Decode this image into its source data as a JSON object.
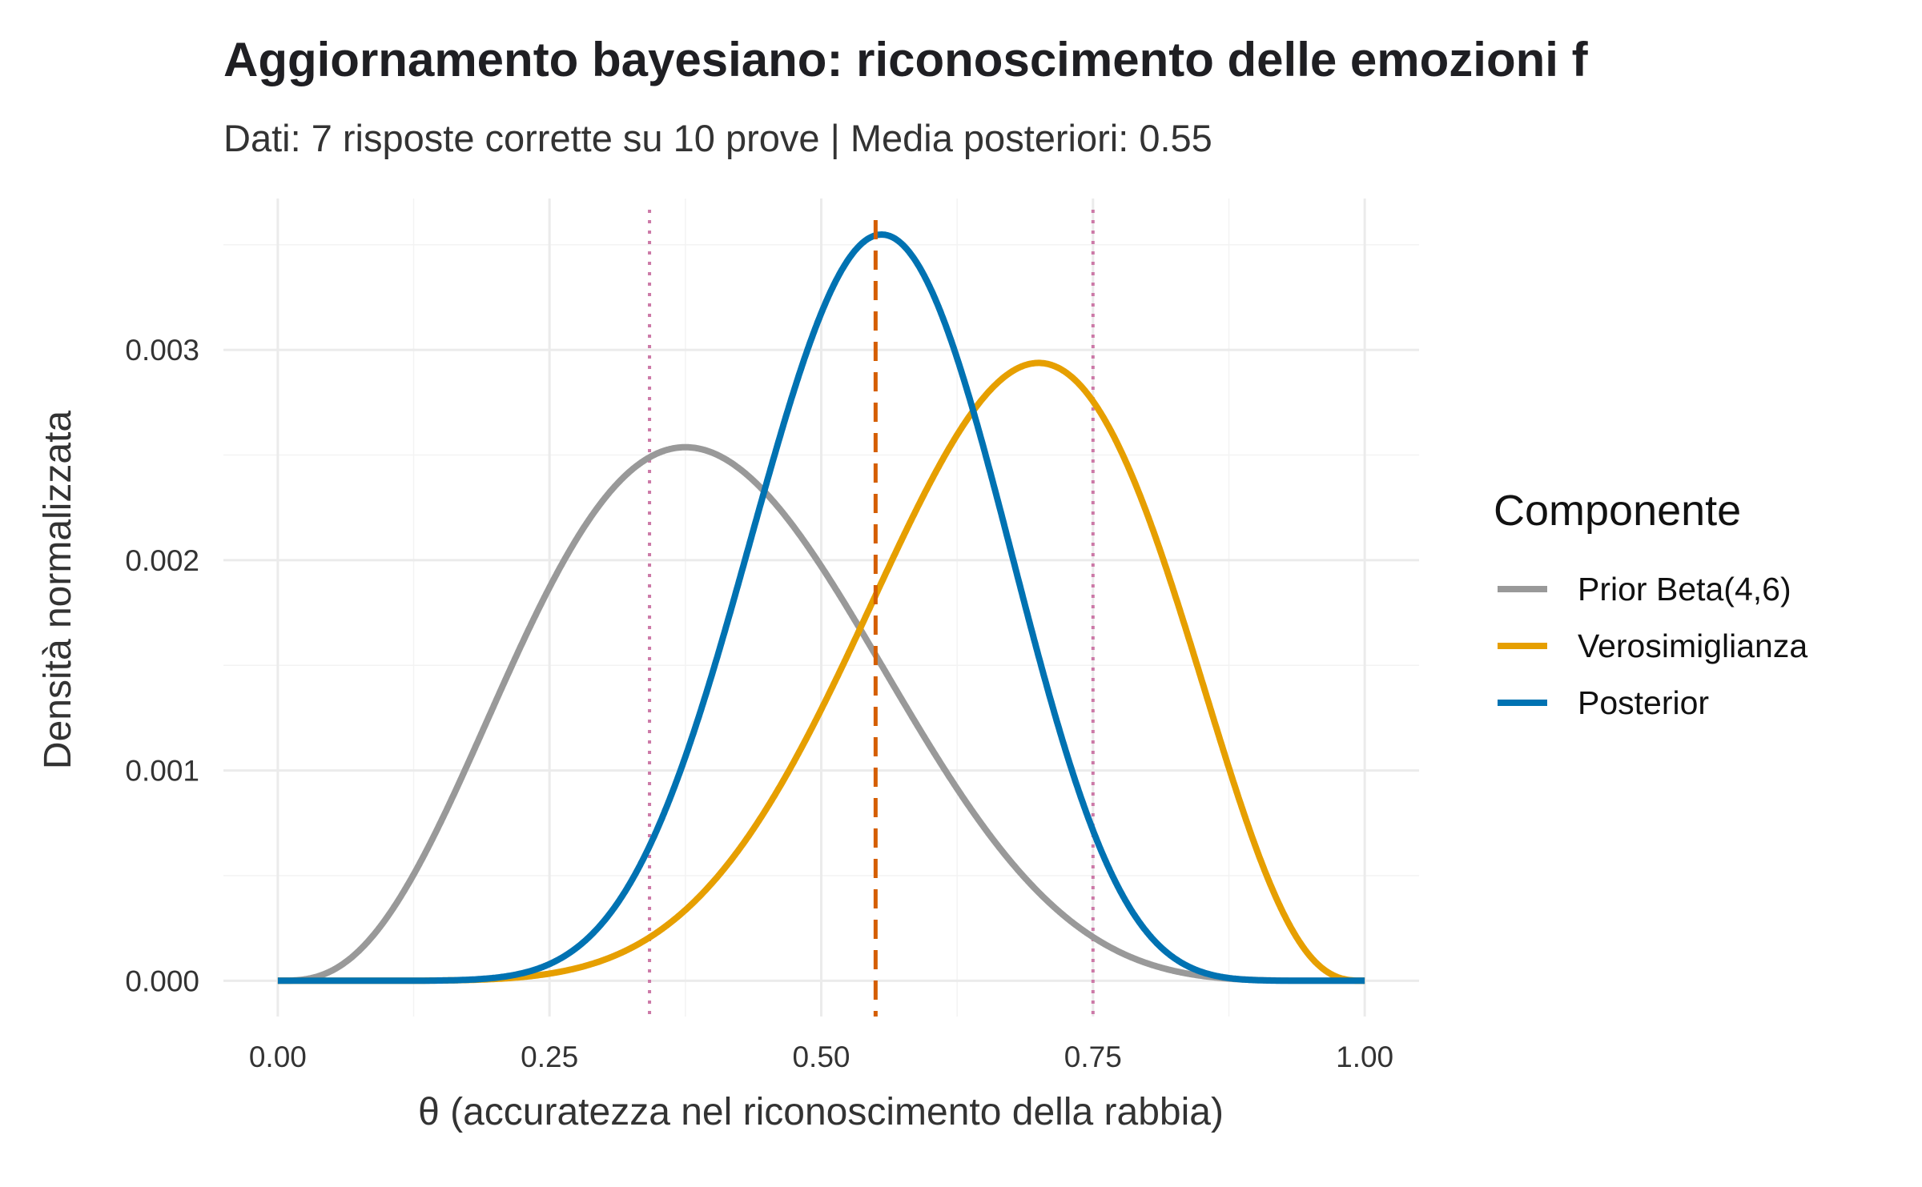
{
  "chart_data": {
    "type": "line",
    "title": "Aggiornamento bayesiano: riconoscimento delle emozioni f",
    "subtitle": "Dati: 7 risposte corrette su 10 prove | Media posteriori: 0.55",
    "xlabel": "θ (accuratezza nel riconoscimento della rabbia)",
    "ylabel": "Densità normalizzata",
    "xlim": [
      -0.05,
      1.05
    ],
    "ylim": [
      -0.00017,
      0.00372
    ],
    "x_ticks": [
      "0.00",
      "0.25",
      "0.50",
      "0.75",
      "1.00"
    ],
    "x_tick_values": [
      0,
      0.25,
      0.5,
      0.75,
      1
    ],
    "y_ticks": [
      "0.000",
      "0.001",
      "0.002",
      "0.003"
    ],
    "y_tick_values": [
      0,
      0.001,
      0.002,
      0.003
    ],
    "grid": true,
    "legend": {
      "title": "Componente",
      "placement": "right"
    },
    "series": [
      {
        "name": "Prior Beta(4,6)",
        "color": "#999999",
        "distribution": "beta",
        "alpha": 4,
        "beta": 6,
        "peak_x": 0.375,
        "peak_y": 0.00254
      },
      {
        "name": "Verosimiglianza",
        "color": "#E69F00",
        "distribution": "beta",
        "alpha": 8,
        "beta": 4,
        "peak_x": 0.7,
        "peak_y": 0.00294
      },
      {
        "name": "Posterior",
        "color": "#0072B2",
        "distribution": "beta",
        "alpha": 11,
        "beta": 9,
        "peak_x": 0.556,
        "peak_y": 0.00355
      }
    ],
    "grid_points": 1000,
    "vlines": [
      {
        "x": 0.55,
        "style": "dashed",
        "color": "#D55E00"
      },
      {
        "x": 0.342,
        "style": "dotted",
        "color": "#CC79A7"
      },
      {
        "x": 0.75,
        "style": "dotted",
        "color": "#CC79A7"
      }
    ]
  }
}
